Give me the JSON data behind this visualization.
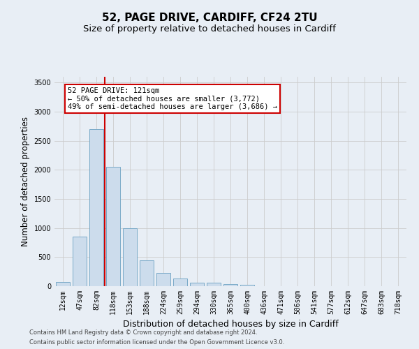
{
  "title1": "52, PAGE DRIVE, CARDIFF, CF24 2TU",
  "title2": "Size of property relative to detached houses in Cardiff",
  "xlabel": "Distribution of detached houses by size in Cardiff",
  "ylabel": "Number of detached properties",
  "bar_labels": [
    "12sqm",
    "47sqm",
    "82sqm",
    "118sqm",
    "153sqm",
    "188sqm",
    "224sqm",
    "259sqm",
    "294sqm",
    "330sqm",
    "365sqm",
    "400sqm",
    "436sqm",
    "471sqm",
    "506sqm",
    "541sqm",
    "577sqm",
    "612sqm",
    "647sqm",
    "683sqm",
    "718sqm"
  ],
  "bar_values": [
    75,
    850,
    2700,
    2050,
    1000,
    450,
    225,
    130,
    60,
    55,
    35,
    20,
    5,
    5,
    2,
    0,
    0,
    0,
    0,
    0,
    0
  ],
  "bar_color": "#ccdcec",
  "bar_edge_color": "#7aaac8",
  "bar_edge_width": 0.7,
  "vline_x_index": 2.5,
  "vline_color": "#cc0000",
  "annotation_text": "52 PAGE DRIVE: 121sqm\n← 50% of detached houses are smaller (3,772)\n49% of semi-detached houses are larger (3,686) →",
  "annotation_box_color": "#ffffff",
  "annotation_box_edge_color": "#cc0000",
  "ylim": [
    0,
    3600
  ],
  "yticks": [
    0,
    500,
    1000,
    1500,
    2000,
    2500,
    3000,
    3500
  ],
  "grid_color": "#cccccc",
  "background_color": "#e8eef5",
  "plot_bg_color": "#e8eef5",
  "footer1": "Contains HM Land Registry data © Crown copyright and database right 2024.",
  "footer2": "Contains public sector information licensed under the Open Government Licence v3.0.",
  "title1_fontsize": 11,
  "title2_fontsize": 9.5,
  "tick_fontsize": 7,
  "ylabel_fontsize": 8.5,
  "xlabel_fontsize": 9,
  "annotation_fontsize": 7.5,
  "footer_fontsize": 6
}
